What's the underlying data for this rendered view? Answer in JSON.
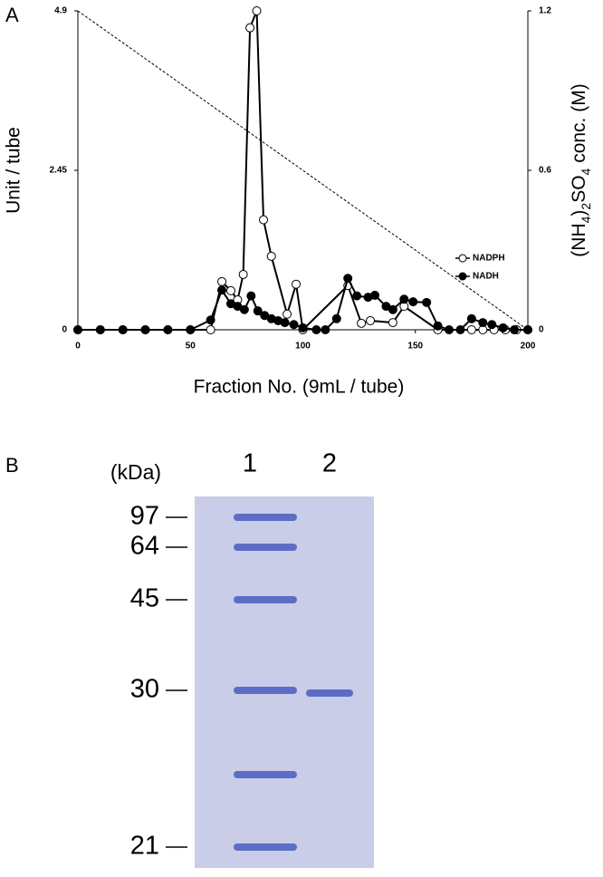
{
  "chart_data": {
    "type": "line",
    "panel_label": "A",
    "x_label": "Fraction No. (9mL / tube)",
    "y_label": "Unit / tube",
    "y2_label": "(NH4)2SO4 conc. (M)",
    "xlim": [
      0,
      200
    ],
    "xticks": [
      0,
      50,
      100,
      150,
      200
    ],
    "ylim": [
      0,
      4.9
    ],
    "yticks": [
      0,
      2.45,
      4.9
    ],
    "y2lim": [
      0,
      1.2
    ],
    "y2ticks": [
      0,
      0.6,
      1.2
    ],
    "legend": "right",
    "series": [
      {
        "name": "NADPH",
        "color": "#000000",
        "marker": "open",
        "x": [
          0,
          10,
          20,
          30,
          40,
          50,
          59,
          64,
          68,
          71,
          73.5,
          76.5,
          79.5,
          82.5,
          86,
          93,
          97,
          100,
          120,
          126,
          130,
          140,
          145,
          160,
          175,
          180,
          185,
          190,
          195,
          200
        ],
        "values": [
          0,
          0,
          0,
          0,
          0,
          0,
          0,
          0.74,
          0.6,
          0.46,
          0.85,
          4.64,
          4.9,
          1.69,
          1.13,
          0.24,
          0.7,
          0,
          0.68,
          0.1,
          0.14,
          0.11,
          0.36,
          0,
          0,
          0,
          0,
          0,
          0,
          0
        ]
      },
      {
        "name": "NADH",
        "color": "#000000",
        "marker": "filled",
        "x": [
          0,
          10,
          20,
          30,
          40,
          50,
          59,
          64,
          68,
          71,
          74,
          77,
          80,
          83,
          86,
          89,
          92,
          96,
          100,
          106,
          110,
          115,
          120,
          124,
          129,
          132,
          137,
          140,
          145,
          149,
          155,
          160,
          165,
          170,
          175,
          180,
          184,
          189,
          194,
          200
        ],
        "values": [
          0,
          0,
          0,
          0,
          0,
          0,
          0.15,
          0.61,
          0.4,
          0.36,
          0.31,
          0.52,
          0.29,
          0.22,
          0.17,
          0.14,
          0.11,
          0.08,
          0.03,
          0,
          0,
          0.17,
          0.79,
          0.52,
          0.5,
          0.53,
          0.36,
          0.31,
          0.47,
          0.43,
          0.42,
          0.06,
          0,
          0,
          0.17,
          0.11,
          0.08,
          0.03,
          0,
          0
        ]
      },
      {
        "axis": "y2",
        "color": "#000000",
        "dash": true,
        "x": [
          0,
          200
        ],
        "values": [
          1.2,
          0
        ]
      }
    ]
  },
  "gel": {
    "panel_label": "B",
    "unit": "(kDa)",
    "lanes": [
      "1",
      "2"
    ],
    "markers": [
      "97",
      "64",
      "45",
      "30",
      "21"
    ]
  }
}
